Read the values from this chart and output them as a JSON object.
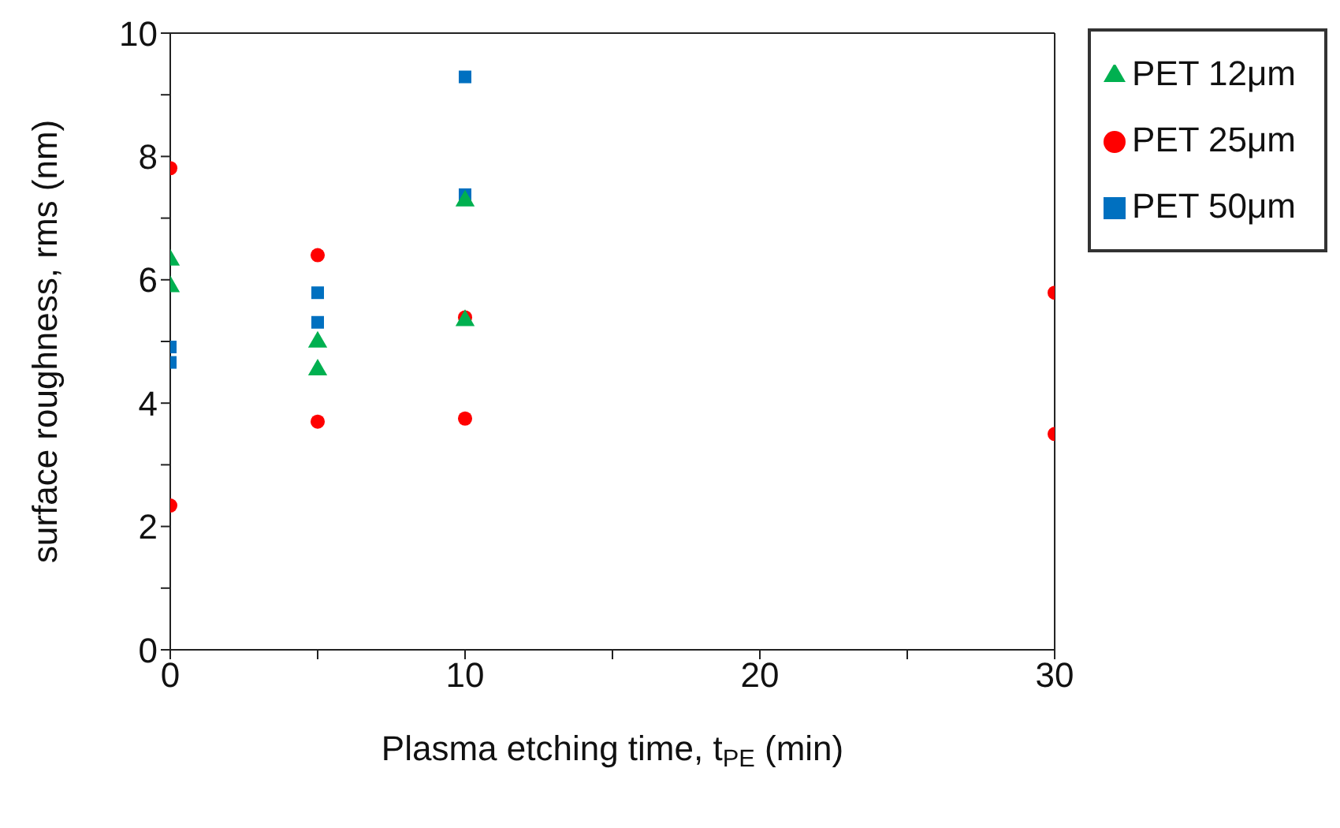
{
  "chart_data": {
    "type": "scatter",
    "xlabel": "Plasma etching time, t$_{PE}$ (min)",
    "ylabel": "surface roughness, rms (nm)",
    "xlim": [
      0,
      30
    ],
    "xticks": [
      0,
      {
        "value": 5,
        "label": null
      },
      10,
      {
        "value": 15,
        "label": null
      },
      20,
      {
        "value": 25,
        "label": null
      },
      30
    ],
    "ylim": [
      0,
      10
    ],
    "yticks": [
      0,
      {
        "value": 1,
        "label": null
      },
      2,
      {
        "value": 3,
        "label": null
      },
      4,
      {
        "value": 5,
        "label": null
      },
      6,
      {
        "value": 7,
        "label": null
      },
      8,
      {
        "value": 9,
        "label": null
      },
      10
    ],
    "legend": "top right",
    "series": [
      {
        "name": "PET 12μm",
        "color": "#00b050",
        "marker": "triangle",
        "x": [
          0,
          0,
          5,
          5,
          10,
          10
        ],
        "values": [
          6.32,
          5.89,
          4.99,
          4.54,
          7.28,
          5.34
        ]
      },
      {
        "name": "PET 25μm",
        "color": "#ff0000",
        "marker": "circle",
        "x": [
          0,
          0,
          5,
          5,
          10,
          10,
          30,
          30
        ],
        "values": [
          7.81,
          2.34,
          6.4,
          3.7,
          5.39,
          3.75,
          5.79,
          3.5
        ]
      },
      {
        "name": "PET 50μm",
        "color": "#0070c0",
        "marker": "square",
        "x": [
          0,
          0,
          5,
          5,
          10,
          10
        ],
        "values": [
          4.91,
          4.66,
          5.79,
          5.31,
          9.29,
          7.38
        ]
      }
    ]
  }
}
